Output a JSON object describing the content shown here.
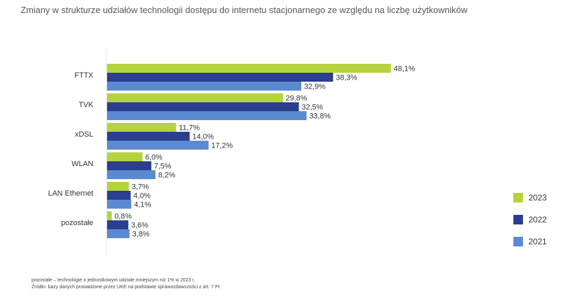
{
  "title": "Zmiany w strukturze udziałów technologii dostępu do internetu stacjonarnego ze względu na liczbę użytkowników",
  "footnotes": [
    "pozostałe – technologie o jednostkowym udziale mniejszym niż 1% w 2023 r.",
    "Źródło: bazy danych prowadzone przez UKE na podstawie sprawozdawczości z art. 7 Pt"
  ],
  "chart_data": {
    "type": "bar",
    "orientation": "horizontal",
    "categories": [
      "FTTX",
      "TVK",
      "xDSL",
      "WLAN",
      "LAN Ethernet",
      "pozostałe"
    ],
    "series": [
      {
        "name": "2023",
        "color": "#b5d33d",
        "values": [
          48.1,
          29.8,
          11.7,
          6.0,
          3.7,
          0.8
        ],
        "labels": [
          "48,1%",
          "29,8%",
          "11,7%",
          "6,0%",
          "3,7%",
          "0,8%"
        ]
      },
      {
        "name": "2022",
        "color": "#2b3f8e",
        "values": [
          38.3,
          32.5,
          14.0,
          7.5,
          4.0,
          3.6
        ],
        "labels": [
          "38,3%",
          "32,5%",
          "14,0%",
          "7,5%",
          "4,0%",
          "3,6%"
        ]
      },
      {
        "name": "2021",
        "color": "#5b8ad0",
        "values": [
          32.9,
          33.8,
          17.2,
          8.2,
          4.1,
          3.8
        ],
        "labels": [
          "32,9%",
          "33,8%",
          "17,2%",
          "8,2%",
          "4,1%",
          "3,8%"
        ]
      }
    ],
    "xlim": [
      0,
      50
    ],
    "legend_position": "right",
    "grid": false
  }
}
